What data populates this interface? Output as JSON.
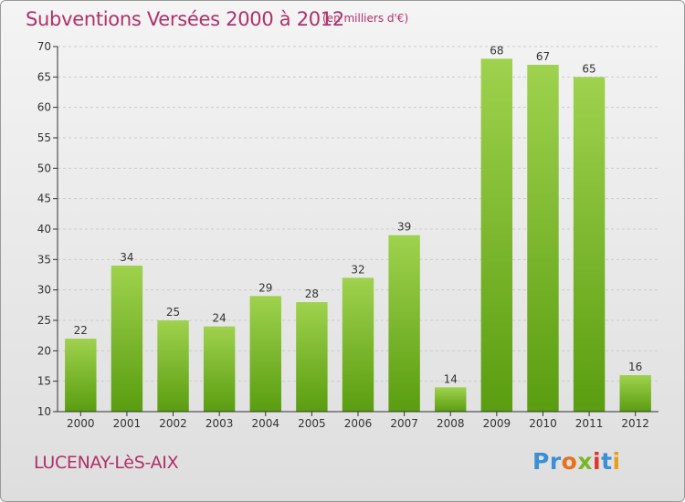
{
  "header": {
    "title": "Subventions Versées 2000 à 2012",
    "subtitle": "(en milliers d'€)"
  },
  "footer": {
    "place_name": "LUCENAY-LèS-AIX",
    "logo_text": "Proxiti"
  },
  "colors": {
    "title": "#b0306a",
    "bar_top": "#9fd24e",
    "bar_bottom": "#5a9d10",
    "axis": "#333333",
    "grid": "#cccccc"
  },
  "logo_letters": [
    {
      "ch": "P",
      "color": "#3a8fd6"
    },
    {
      "ch": "r",
      "color": "#3a8fd6"
    },
    {
      "ch": "o",
      "color": "#e8701a"
    },
    {
      "ch": "x",
      "color": "#79b729"
    },
    {
      "ch": "i",
      "color": "#e0352c"
    },
    {
      "ch": "t",
      "color": "#3a8fd6"
    },
    {
      "ch": "i",
      "color": "#e8a01a"
    }
  ],
  "chart_data": {
    "type": "bar",
    "title": "Subventions Versées 2000 à 2012",
    "subtitle": "(en milliers d'€)",
    "categories": [
      "2000",
      "2001",
      "2002",
      "2003",
      "2004",
      "2005",
      "2006",
      "2007",
      "2008",
      "2009",
      "2010",
      "2011",
      "2012"
    ],
    "values": [
      22,
      34,
      25,
      24,
      29,
      28,
      32,
      39,
      14,
      68,
      67,
      65,
      16
    ],
    "ylim": [
      10,
      70
    ],
    "yticks": [
      10,
      15,
      20,
      25,
      30,
      35,
      40,
      45,
      50,
      55,
      60,
      65,
      70
    ],
    "xlabel": "",
    "ylabel": "",
    "grid": true
  }
}
